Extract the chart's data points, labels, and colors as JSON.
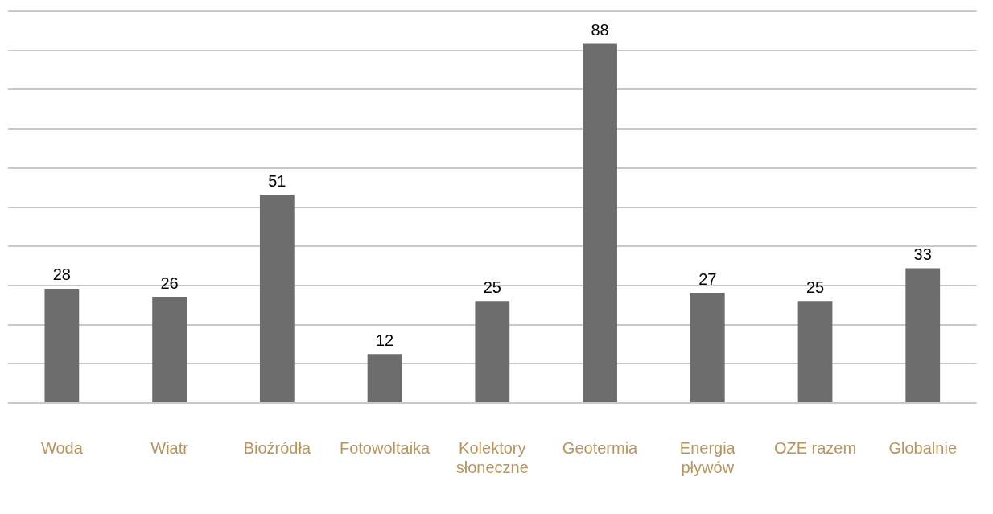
{
  "chart_data": {
    "type": "bar",
    "categories": [
      "Woda",
      "Wiatr",
      "Bioźródła",
      "Fotowoltaika",
      "Kolektory słoneczne",
      "Geotermia",
      "Energia pływów",
      "OZE razem",
      "Globalnie"
    ],
    "values": [
      28,
      26,
      51,
      12,
      25,
      88,
      27,
      25,
      33
    ],
    "color": "#6d6d6d",
    "ylim": [
      0,
      96
    ],
    "yticks": [
      {
        "value": 0,
        "label": null
      },
      {
        "value": 9.6,
        "label": null
      },
      {
        "value": 19.2,
        "label": null
      },
      {
        "value": 28.8,
        "label": null
      },
      {
        "value": 38.4,
        "label": null
      },
      {
        "value": 48,
        "label": null
      },
      {
        "value": 57.6,
        "label": null
      },
      {
        "value": 67.2,
        "label": null
      },
      {
        "value": 76.8,
        "label": null
      },
      {
        "value": 86.4,
        "label": null
      },
      {
        "value": 96,
        "label": null
      }
    ],
    "grid": "y",
    "tick_labels": "x",
    "data_labels": true
  }
}
